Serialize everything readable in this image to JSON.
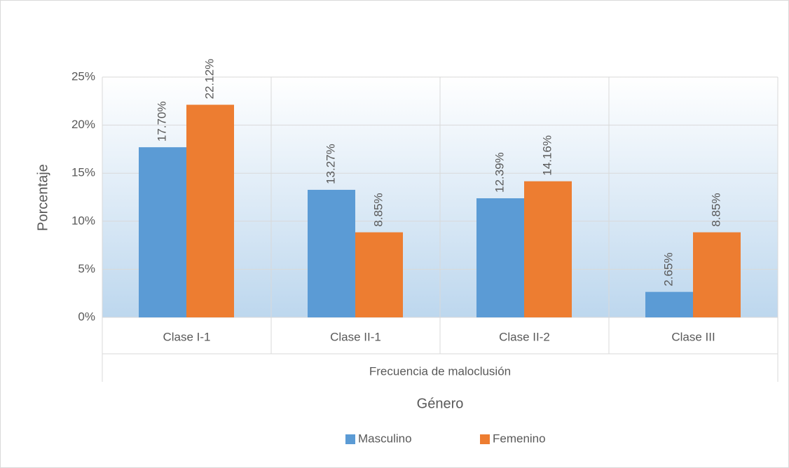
{
  "chart_data": {
    "type": "bar",
    "categories": [
      "Clase I-1",
      "Clase II-1",
      "Clase II-2",
      "Clase III"
    ],
    "group_label": "Frecuencia de maloclusión",
    "x_label": "Género",
    "y_label": "Porcentaje",
    "series": [
      {
        "name": "Masculino",
        "color": "#5b9bd5",
        "values": [
          17.7,
          13.27,
          12.39,
          2.65
        ],
        "value_labels": [
          "17.70%",
          "13.27%",
          "12.39%",
          "2.65%"
        ]
      },
      {
        "name": "Femenino",
        "color": "#ed7d31",
        "values": [
          22.12,
          8.85,
          14.16,
          8.85
        ],
        "value_labels": [
          "22.12%",
          "8.85%",
          "14.16%",
          "8.85%"
        ]
      }
    ],
    "ylim": [
      0,
      25
    ],
    "yticks": [
      {
        "value": 0,
        "label": "0%"
      },
      {
        "value": 5,
        "label": "5%"
      },
      {
        "value": 10,
        "label": "10%"
      },
      {
        "value": 15,
        "label": "15%"
      },
      {
        "value": 20,
        "label": "20%"
      },
      {
        "value": 25,
        "label": "25%"
      }
    ],
    "grid": true,
    "legend": "bottom"
  }
}
